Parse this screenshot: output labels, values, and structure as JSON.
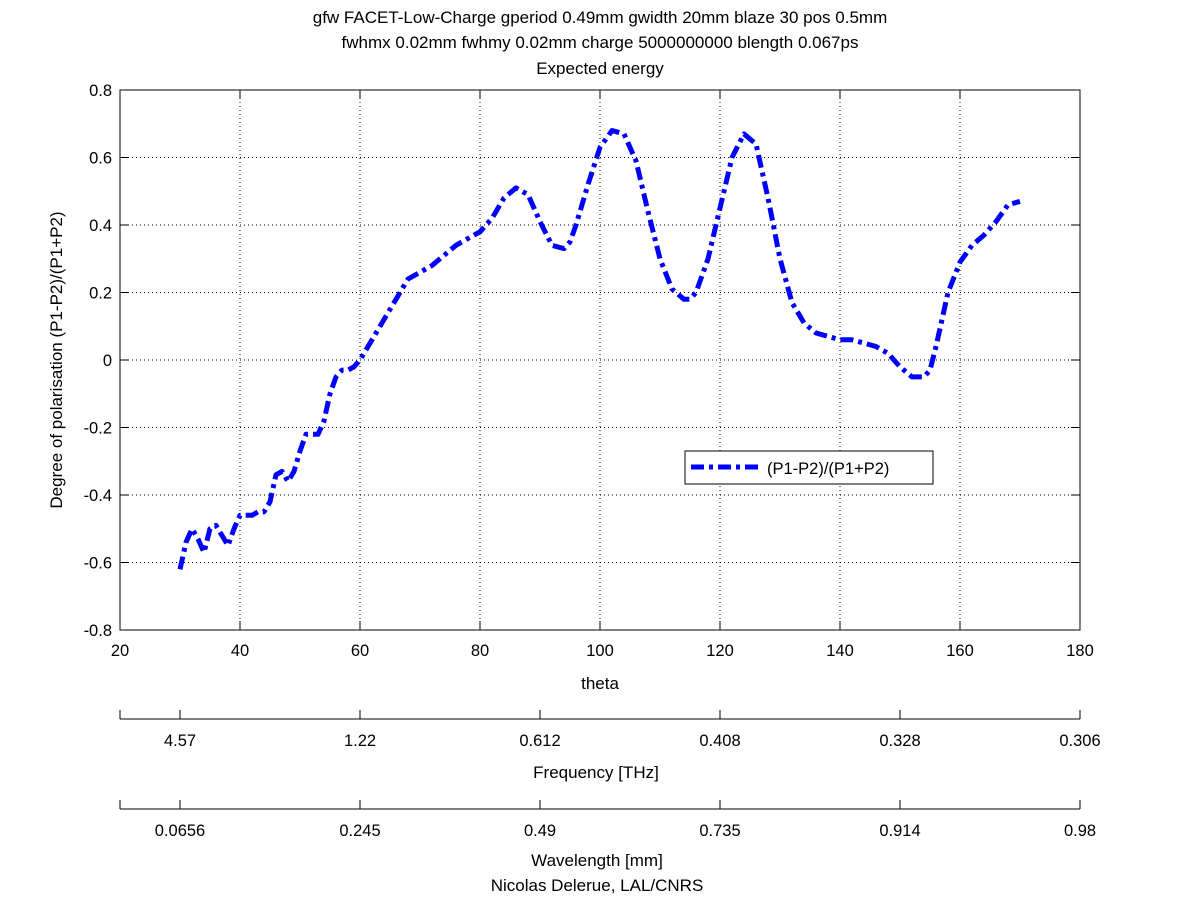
{
  "figure": {
    "title_lines": [
      "gfw FACET-Low-Charge gperiod 0.49mm gwidth 20mm blaze 30 pos 0.5mm",
      "fwhmx 0.02mm fwhmy 0.02mm charge 5000000000 blength 0.067ps",
      "Expected energy"
    ],
    "credit": "Nicolas Delerue, LAL/CNRS"
  },
  "chart_data": {
    "type": "line",
    "title": "gfw FACET-Low-Charge gperiod 0.49mm gwidth 20mm blaze 30 pos 0.5mm fwhmx 0.02mm fwhmy 0.02mm charge 5000000000 blength 0.067ps Expected energy",
    "xlabel": "theta",
    "ylabel": "Degree of polarisation (P1-P2)/(P1+P2)",
    "xlim": [
      20,
      180
    ],
    "ylim": [
      -0.8,
      0.8
    ],
    "xticks": [
      20,
      40,
      60,
      80,
      100,
      120,
      140,
      160,
      180
    ],
    "xtick_labels": [
      "20",
      "40",
      "60",
      "80",
      "100",
      "120",
      "140",
      "160",
      "180"
    ],
    "yticks": [
      -0.8,
      -0.6,
      -0.4,
      -0.2,
      0,
      0.2,
      0.4,
      0.6,
      0.8
    ],
    "ytick_labels": [
      "-0.8",
      "-0.6",
      "-0.4",
      "-0.2",
      "0",
      "0.2",
      "0.4",
      "0.6",
      "0.8"
    ],
    "grid": true,
    "grid_style": "dotted",
    "legend_position": "lower-right",
    "series": [
      {
        "name": "(P1-P2)/(P1+P2)",
        "color": "#0000ff",
        "line_style": "dash-dot",
        "x": [
          30,
          31,
          32,
          33,
          34,
          35,
          36,
          37,
          38,
          39,
          40,
          41,
          42,
          43,
          44,
          45,
          46,
          47,
          48,
          49,
          50,
          51,
          52,
          53,
          54,
          55,
          56,
          57,
          58,
          59,
          60,
          62,
          64,
          66,
          68,
          70,
          72,
          74,
          76,
          78,
          80,
          82,
          84,
          86,
          88,
          90,
          92,
          94,
          95,
          96,
          98,
          100,
          102,
          104,
          106,
          108,
          110,
          112,
          114,
          115,
          116,
          118,
          120,
          122,
          124,
          126,
          128,
          130,
          132,
          134,
          136,
          138,
          140,
          142,
          144,
          146,
          148,
          150,
          152,
          154,
          155,
          156,
          158,
          160,
          162,
          164,
          166,
          168,
          170
        ],
        "y": [
          -0.62,
          -0.54,
          -0.5,
          -0.53,
          -0.57,
          -0.5,
          -0.49,
          -0.52,
          -0.55,
          -0.5,
          -0.46,
          -0.46,
          -0.46,
          -0.45,
          -0.45,
          -0.42,
          -0.34,
          -0.33,
          -0.36,
          -0.33,
          -0.27,
          -0.22,
          -0.22,
          -0.22,
          -0.18,
          -0.1,
          -0.05,
          -0.03,
          -0.03,
          -0.02,
          0.0,
          0.06,
          0.12,
          0.18,
          0.24,
          0.26,
          0.28,
          0.31,
          0.34,
          0.36,
          0.38,
          0.42,
          0.48,
          0.51,
          0.49,
          0.41,
          0.34,
          0.33,
          0.35,
          0.4,
          0.52,
          0.63,
          0.68,
          0.67,
          0.59,
          0.44,
          0.3,
          0.21,
          0.18,
          0.18,
          0.2,
          0.3,
          0.45,
          0.6,
          0.67,
          0.64,
          0.48,
          0.3,
          0.17,
          0.11,
          0.08,
          0.07,
          0.06,
          0.06,
          0.05,
          0.04,
          0.02,
          -0.02,
          -0.05,
          -0.05,
          -0.03,
          0.04,
          0.2,
          0.29,
          0.34,
          0.37,
          0.41,
          0.46,
          0.47
        ]
      }
    ],
    "secondary_axes": [
      {
        "label": "Frequency [THz]",
        "ticks": [
          30,
          60,
          90,
          120,
          150,
          180
        ],
        "tick_labels": [
          "4.57",
          "1.22",
          "0.612",
          "0.408",
          "0.328",
          "0.306"
        ]
      },
      {
        "label": "Wavelength [mm]",
        "ticks": [
          30,
          60,
          90,
          120,
          150,
          180
        ],
        "tick_labels": [
          "0.0656",
          "0.245",
          "0.49",
          "0.735",
          "0.914",
          "0.98"
        ]
      }
    ]
  }
}
